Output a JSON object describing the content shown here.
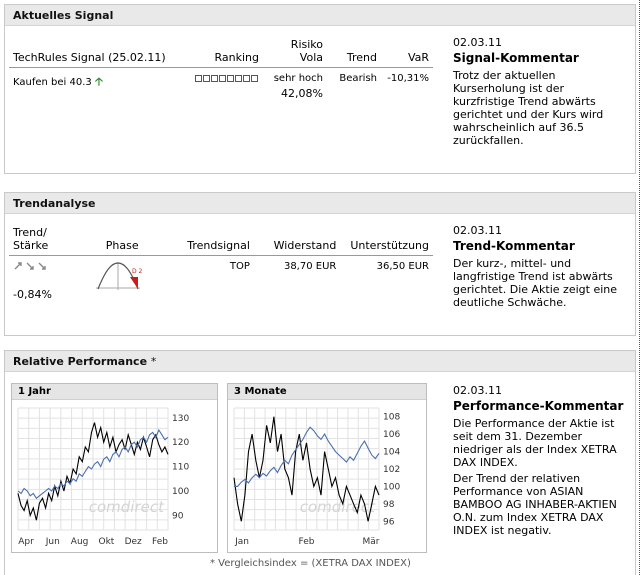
{
  "signal": {
    "header": "Aktuelles Signal",
    "columns": {
      "signal": "TechRules Signal (25.02.11)",
      "ranking": "Ranking",
      "risiko_line1": "Risiko",
      "risiko_line2": "Vola",
      "trend": "Trend",
      "var": "VaR"
    },
    "row": {
      "signal": "Kaufen bei 40.3",
      "ranking_filled": 0,
      "ranking_total": 8,
      "risiko_line1": "sehr hoch",
      "risiko_line2": "42,08%",
      "trend": "Bearish",
      "var": "-10,31%"
    },
    "comment": {
      "date": "02.03.11",
      "title": "Signal-Kommentar",
      "text": "Trotz der aktuellen Kurserholung ist der kurzfristige Trend abwärts gerichtet und der Kurs wird wahrscheinlich auf 36.5 zurückfallen."
    }
  },
  "trend": {
    "header": "Trendanalyse",
    "columns": {
      "trend_line1": "Trend/",
      "trend_line2": "Stärke",
      "phase": "Phase",
      "trendsignal": "Trendsignal",
      "widerstand": "Widerstand",
      "unterstuetzung": "Unterstützung"
    },
    "row": {
      "strength": "-0,84%",
      "phase_label": "D 2",
      "trendsignal": "TOP",
      "widerstand": "38,70 EUR",
      "unterstuetzung": "36,50 EUR"
    },
    "comment": {
      "date": "02.03.11",
      "title": "Trend-Kommentar",
      "text": "Der kurz-, mittel- und langfristige Trend ist abwärts gerichtet. Die Aktie zeigt eine deutliche Schwäche."
    }
  },
  "performance": {
    "header": "Relative Performance",
    "header_star": "*",
    "watermark": "comdirect",
    "footnote": "* Vergleichsindex = (XETRA DAX INDEX)",
    "comment": {
      "date": "02.03.11",
      "title": "Performance-Kommentar",
      "text1": "Die Performance der Aktie ist seit dem 31. Dezember niedriger als der Index XETRA DAX INDEX.",
      "text2": "Der Trend der relativen Performance von ASIAN BAMBOO AG INHABER-AKTIEN O.N. zum Index XETRA DAX INDEX ist negativ."
    }
  },
  "chart_data": [
    {
      "type": "line",
      "title": "1 Jahr",
      "xlabel": "",
      "ylabel": "",
      "x_ticks": [
        "Apr",
        "Jun",
        "Aug",
        "Okt",
        "Dez",
        "Feb"
      ],
      "y_ticks": [
        90,
        100,
        110,
        120,
        130
      ],
      "ylim": [
        84,
        134
      ],
      "grid": true,
      "series": [
        {
          "color": "#000000",
          "values": [
            99,
            94,
            92,
            96,
            90,
            93,
            88,
            95,
            97,
            93,
            99,
            96,
            102,
            98,
            104,
            100,
            106,
            103,
            109,
            107,
            114,
            112,
            118,
            116,
            124,
            128,
            122,
            126,
            120,
            124,
            118,
            122,
            116,
            119,
            121,
            117,
            123,
            119,
            115,
            120,
            117,
            122,
            118,
            114,
            121,
            123,
            119,
            116,
            118,
            115
          ]
        },
        {
          "color": "#4a6fb0",
          "values": [
            100,
            99,
            101,
            100,
            98,
            99,
            97,
            98,
            99,
            100,
            101,
            100,
            102,
            101,
            103,
            102,
            104,
            103,
            105,
            104,
            107,
            106,
            108,
            110,
            109,
            111,
            112,
            110,
            113,
            114,
            112,
            115,
            116,
            114,
            117,
            118,
            116,
            119,
            120,
            118,
            121,
            122,
            120,
            123,
            124,
            122,
            125,
            123,
            121,
            122
          ]
        }
      ]
    },
    {
      "type": "line",
      "title": "3 Monate",
      "xlabel": "",
      "ylabel": "",
      "x_ticks": [
        "Jan",
        "Feb",
        "Mär"
      ],
      "y_ticks": [
        96,
        98,
        100,
        102,
        104,
        106,
        108
      ],
      "ylim": [
        95,
        109
      ],
      "grid": true,
      "series": [
        {
          "color": "#000000",
          "values": [
            101,
            98,
            96,
            99,
            104,
            106,
            103,
            101,
            103,
            107,
            105,
            108,
            104,
            106,
            102,
            101,
            99,
            104,
            106,
            103,
            105,
            102,
            100,
            101,
            99,
            104,
            102,
            100,
            101,
            99,
            98,
            100,
            99,
            98,
            97,
            99,
            98,
            96,
            98,
            100,
            99
          ]
        },
        {
          "color": "#4a6fb0",
          "values": [
            100,
            100,
            100.5,
            100.8,
            100.4,
            101,
            101.4,
            101,
            101.5,
            101.2,
            101.8,
            102.2,
            101.6,
            102.4,
            103,
            102.6,
            103.6,
            104.2,
            104.8,
            105.4,
            106.2,
            106.8,
            106.4,
            105.8,
            105.4,
            106,
            105.2,
            104.6,
            104,
            103.6,
            103.2,
            102.8,
            103.4,
            103,
            103.8,
            104.6,
            105.2,
            104.4,
            103.6,
            103.2,
            103.8
          ]
        }
      ]
    }
  ]
}
